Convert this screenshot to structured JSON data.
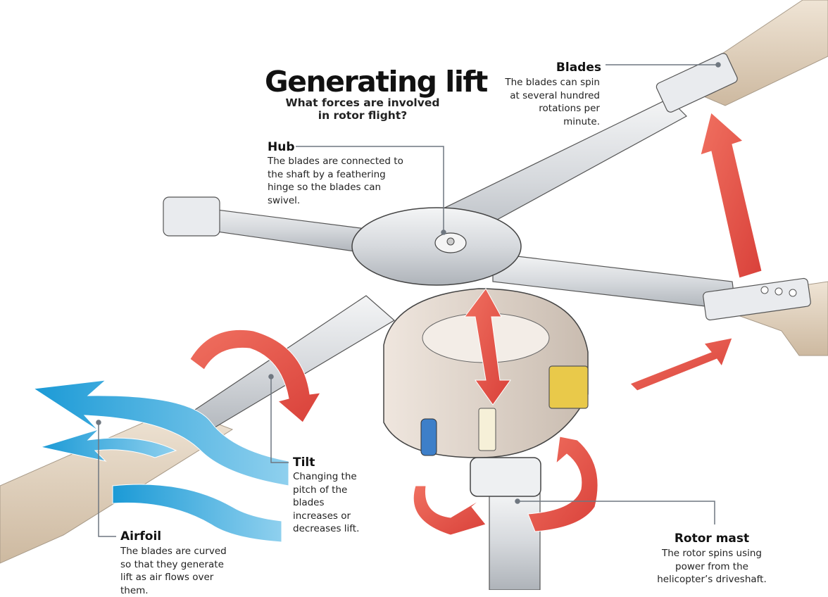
{
  "title": "Generating lift",
  "subtitle": "What forces are involved in rotor flight?",
  "callouts": {
    "blades": {
      "heading": "Blades",
      "text": "The blades can spin at several hundred rotations per minute."
    },
    "hub": {
      "heading": "Hub",
      "text": "The blades are connected to the shaft by a feathering hinge so the blades can swivel."
    },
    "tilt": {
      "heading": "Tilt",
      "text": "Changing the pitch of the blades increases or decreases lift."
    },
    "airfoil": {
      "heading": "Airfoil",
      "text": "The blades are curved so that they generate lift as air flows over them."
    },
    "rotor_mast": {
      "heading": "Rotor mast",
      "text": "The rotor spins using power from the helicopter’s driveshaft."
    }
  },
  "colors": {
    "arrow_red": "#e8564b",
    "airflow_blue": "#2ea7dc",
    "blade_tan": "#e6d7c3",
    "metal": "#d9dce0",
    "leader_line": "#6f7780"
  }
}
